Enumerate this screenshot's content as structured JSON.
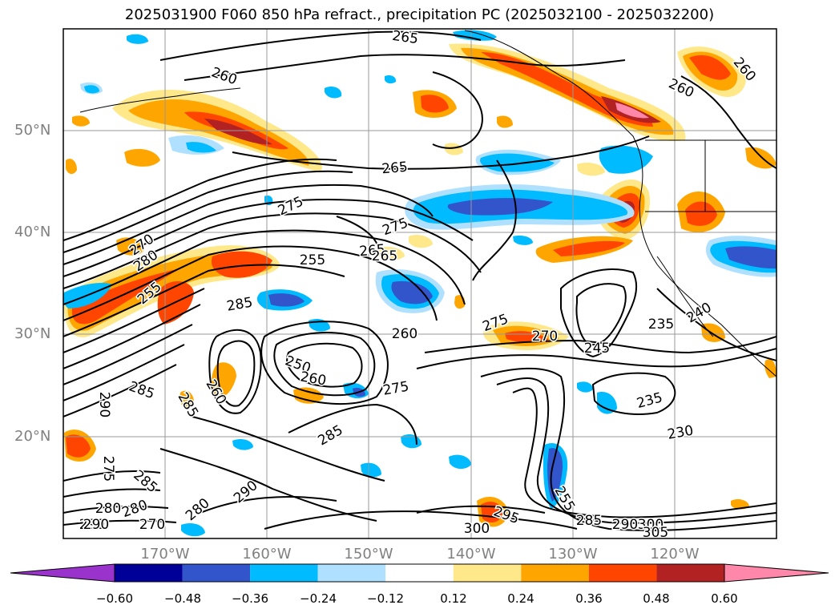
{
  "title": "2025031900 F060 850 hPa refract., precipitation PC (2025032100 - 2025032200)",
  "map": {
    "lon_range": [
      -180,
      -110
    ],
    "lat_range": [
      10,
      60
    ],
    "grid": true,
    "lat_labels": [
      "50°N",
      "40°N",
      "30°N",
      "20°N"
    ],
    "lon_labels": [
      "170°W",
      "160°W",
      "150°W",
      "140°W",
      "130°W",
      "120°W"
    ]
  },
  "contour_labels": [
    "265",
    "260",
    "260",
    "260",
    "265",
    "275",
    "265",
    "275",
    "270",
    "280",
    "255",
    "265",
    "285",
    "255",
    "250",
    "260",
    "285",
    "275",
    "260",
    "275",
    "270",
    "245",
    "235",
    "240",
    "235",
    "230",
    "290",
    "285",
    "285",
    "260",
    "285",
    "290",
    "280",
    "280",
    "275",
    "290",
    "280",
    "270",
    "290",
    "300",
    "295",
    "255",
    "285",
    "290",
    "300",
    "305"
  ],
  "colorbar": {
    "ticks": [
      "−0.60",
      "−0.48",
      "−0.36",
      "−0.24",
      "−0.12",
      "0.12",
      "0.24",
      "0.36",
      "0.48",
      "0.60"
    ],
    "colors": [
      "#9933cc",
      "#000099",
      "#3355cc",
      "#00bbff",
      "#b0e0ff",
      "#ffffff",
      "#ffe88a",
      "#ffa500",
      "#ff4500",
      "#b22222",
      "#ff88aa"
    ]
  }
}
